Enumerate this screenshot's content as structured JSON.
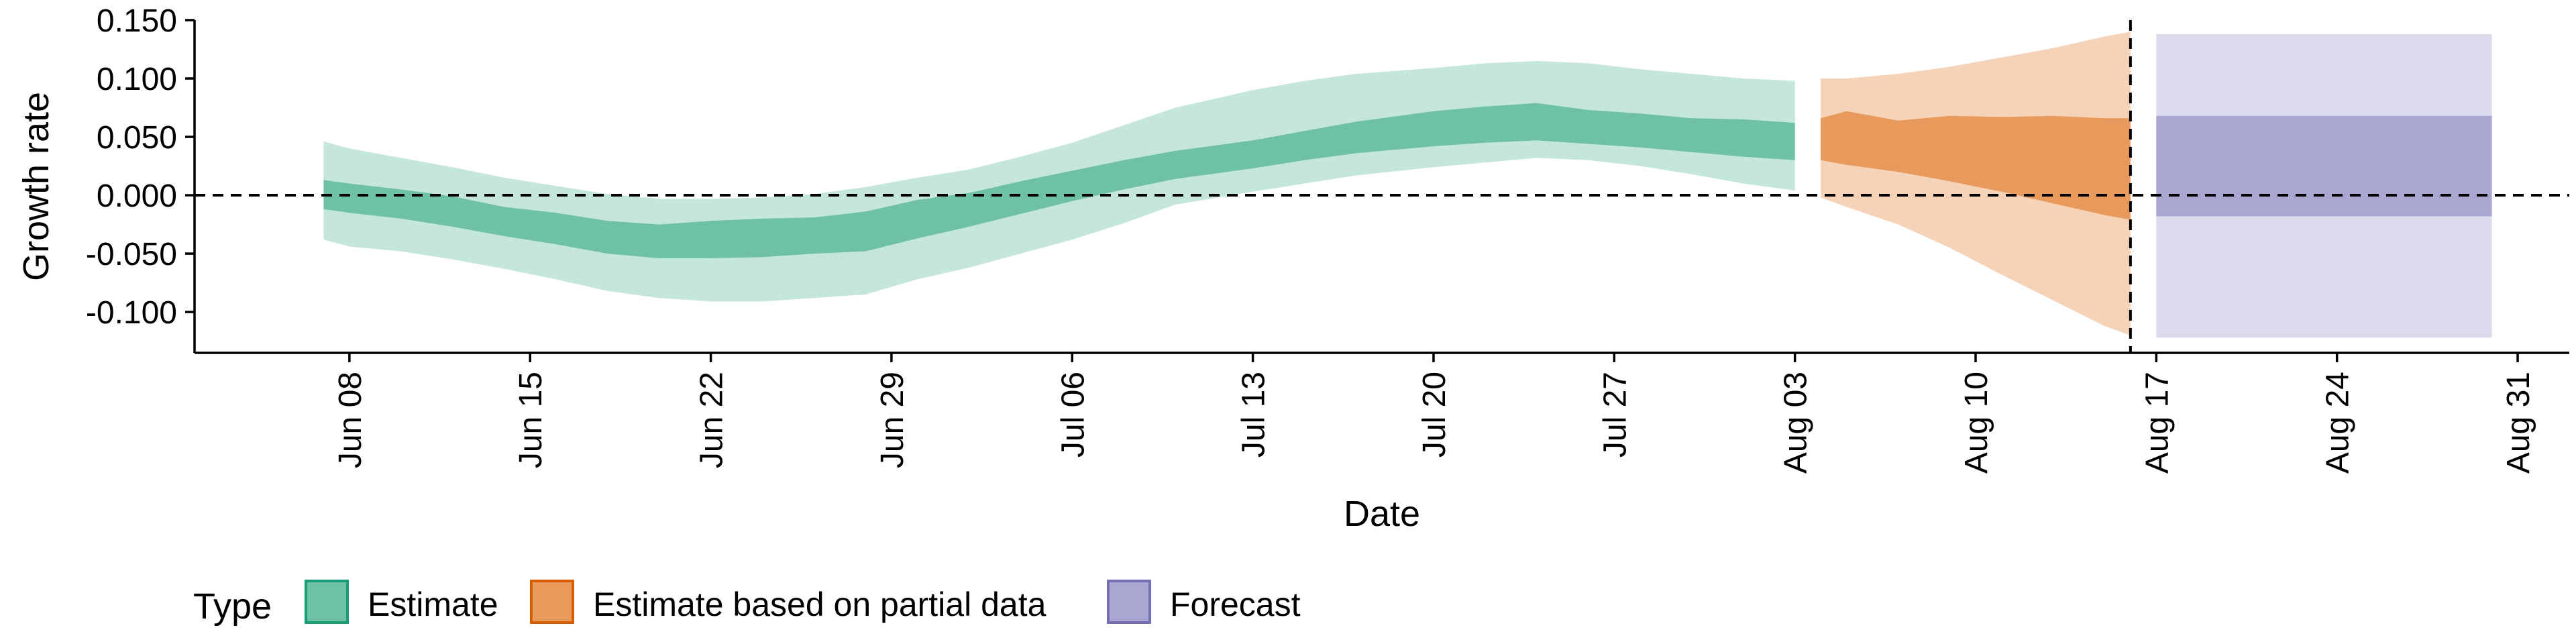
{
  "chart_data": {
    "type": "area",
    "title": "",
    "xlabel": "Date",
    "ylabel": "Growth rate",
    "ylim": [
      -0.135,
      0.15
    ],
    "y_ticks": [
      {
        "value": 0.15,
        "label": "0.150"
      },
      {
        "value": 0.1,
        "label": "0.100"
      },
      {
        "value": 0.05,
        "label": "0.050"
      },
      {
        "value": 0.0,
        "label": "0.000"
      },
      {
        "value": -0.05,
        "label": "-0.050"
      },
      {
        "value": -0.1,
        "label": "-0.100"
      }
    ],
    "x_ticks": [
      {
        "date": "2020-06-08",
        "label": "Jun 08"
      },
      {
        "date": "2020-06-15",
        "label": "Jun 15"
      },
      {
        "date": "2020-06-22",
        "label": "Jun 22"
      },
      {
        "date": "2020-06-29",
        "label": "Jun 29"
      },
      {
        "date": "2020-07-06",
        "label": "Jul 06"
      },
      {
        "date": "2020-07-13",
        "label": "Jul 13"
      },
      {
        "date": "2020-07-20",
        "label": "Jul 20"
      },
      {
        "date": "2020-07-27",
        "label": "Jul 27"
      },
      {
        "date": "2020-08-03",
        "label": "Aug 03"
      },
      {
        "date": "2020-08-10",
        "label": "Aug 10"
      },
      {
        "date": "2020-08-17",
        "label": "Aug 17"
      },
      {
        "date": "2020-08-24",
        "label": "Aug 24"
      },
      {
        "date": "2020-08-31",
        "label": "Aug 31"
      }
    ],
    "xlim": [
      "2020-06-02",
      "2020-09-02"
    ],
    "reference_lines": {
      "horizontal_y": 0.0,
      "vertical_date": "2020-08-16",
      "style": "dashed"
    },
    "legend": {
      "title": "Type",
      "position": "bottom-left",
      "items": [
        {
          "name": "Estimate",
          "fill": "#6fc1a5",
          "border": "#1b9e77"
        },
        {
          "name": "Estimate based on partial data",
          "fill": "#e89a5d",
          "border": "#d95f02"
        },
        {
          "name": "Forecast",
          "fill": "#a9a6d2",
          "border": "#7570b3"
        }
      ]
    },
    "series": [
      {
        "name": "Estimate",
        "inner_color": "#6fc1a5",
        "outer_color": "#c5e6da",
        "points": [
          {
            "date": "2020-06-07",
            "lower90": -0.038,
            "lower50": -0.012,
            "upper50": 0.013,
            "upper90": 0.046
          },
          {
            "date": "2020-06-08",
            "lower90": -0.044,
            "lower50": -0.015,
            "upper50": 0.01,
            "upper90": 0.04
          },
          {
            "date": "2020-06-10",
            "lower90": -0.048,
            "lower50": -0.02,
            "upper50": 0.005,
            "upper90": 0.032
          },
          {
            "date": "2020-06-12",
            "lower90": -0.055,
            "lower50": -0.027,
            "upper50": -0.001,
            "upper90": 0.024
          },
          {
            "date": "2020-06-14",
            "lower90": -0.063,
            "lower50": -0.035,
            "upper50": -0.01,
            "upper90": 0.015
          },
          {
            "date": "2020-06-16",
            "lower90": -0.072,
            "lower50": -0.042,
            "upper50": -0.015,
            "upper90": 0.008
          },
          {
            "date": "2020-06-18",
            "lower90": -0.082,
            "lower50": -0.05,
            "upper50": -0.022,
            "upper90": 0.001
          },
          {
            "date": "2020-06-20",
            "lower90": -0.088,
            "lower50": -0.054,
            "upper50": -0.025,
            "upper90": -0.003
          },
          {
            "date": "2020-06-22",
            "lower90": -0.091,
            "lower50": -0.054,
            "upper50": -0.022,
            "upper90": -0.003
          },
          {
            "date": "2020-06-24",
            "lower90": -0.091,
            "lower50": -0.053,
            "upper50": -0.02,
            "upper90": -0.002
          },
          {
            "date": "2020-06-26",
            "lower90": -0.088,
            "lower50": -0.05,
            "upper50": -0.019,
            "upper90": 0.001
          },
          {
            "date": "2020-06-28",
            "lower90": -0.085,
            "lower50": -0.048,
            "upper50": -0.014,
            "upper90": 0.007
          },
          {
            "date": "2020-06-30",
            "lower90": -0.072,
            "lower50": -0.037,
            "upper50": -0.004,
            "upper90": 0.015
          },
          {
            "date": "2020-07-02",
            "lower90": -0.062,
            "lower50": -0.027,
            "upper50": 0.002,
            "upper90": 0.022
          },
          {
            "date": "2020-07-04",
            "lower90": -0.05,
            "lower50": -0.016,
            "upper50": 0.012,
            "upper90": 0.033
          },
          {
            "date": "2020-07-06",
            "lower90": -0.038,
            "lower50": -0.005,
            "upper50": 0.021,
            "upper90": 0.045
          },
          {
            "date": "2020-07-08",
            "lower90": -0.024,
            "lower50": 0.005,
            "upper50": 0.03,
            "upper90": 0.06
          },
          {
            "date": "2020-07-10",
            "lower90": -0.008,
            "lower50": 0.014,
            "upper50": 0.038,
            "upper90": 0.075
          },
          {
            "date": "2020-07-13",
            "lower90": 0.003,
            "lower50": 0.023,
            "upper50": 0.047,
            "upper90": 0.09
          },
          {
            "date": "2020-07-15",
            "lower90": 0.01,
            "lower50": 0.03,
            "upper50": 0.055,
            "upper90": 0.098
          },
          {
            "date": "2020-07-17",
            "lower90": 0.017,
            "lower50": 0.036,
            "upper50": 0.063,
            "upper90": 0.104
          },
          {
            "date": "2020-07-20",
            "lower90": 0.024,
            "lower50": 0.042,
            "upper50": 0.072,
            "upper90": 0.109
          },
          {
            "date": "2020-07-22",
            "lower90": 0.028,
            "lower50": 0.045,
            "upper50": 0.076,
            "upper90": 0.113
          },
          {
            "date": "2020-07-24",
            "lower90": 0.032,
            "lower50": 0.047,
            "upper50": 0.079,
            "upper90": 0.115
          },
          {
            "date": "2020-07-26",
            "lower90": 0.03,
            "lower50": 0.044,
            "upper50": 0.073,
            "upper90": 0.113
          },
          {
            "date": "2020-07-28",
            "lower90": 0.025,
            "lower50": 0.041,
            "upper50": 0.07,
            "upper90": 0.108
          },
          {
            "date": "2020-07-30",
            "lower90": 0.018,
            "lower50": 0.037,
            "upper50": 0.066,
            "upper90": 0.104
          },
          {
            "date": "2020-08-01",
            "lower90": 0.01,
            "lower50": 0.033,
            "upper50": 0.065,
            "upper90": 0.1
          },
          {
            "date": "2020-08-03",
            "lower90": 0.004,
            "lower50": 0.03,
            "upper50": 0.062,
            "upper90": 0.098
          }
        ]
      },
      {
        "name": "Estimate based on partial data",
        "inner_color": "#e89a5d",
        "outer_color": "#f5d3b9",
        "points": [
          {
            "date": "2020-08-04",
            "lower90": -0.002,
            "lower50": 0.03,
            "upper50": 0.066,
            "upper90": 0.1
          },
          {
            "date": "2020-08-05",
            "lower90": -0.01,
            "lower50": 0.026,
            "upper50": 0.072,
            "upper90": 0.1
          },
          {
            "date": "2020-08-07",
            "lower90": -0.025,
            "lower50": 0.02,
            "upper50": 0.064,
            "upper90": 0.104
          },
          {
            "date": "2020-08-09",
            "lower90": -0.045,
            "lower50": 0.012,
            "upper50": 0.068,
            "upper90": 0.11
          },
          {
            "date": "2020-08-11",
            "lower90": -0.068,
            "lower50": 0.003,
            "upper50": 0.067,
            "upper90": 0.118
          },
          {
            "date": "2020-08-13",
            "lower90": -0.09,
            "lower50": -0.007,
            "upper50": 0.068,
            "upper90": 0.126
          },
          {
            "date": "2020-08-15",
            "lower90": -0.112,
            "lower50": -0.017,
            "upper50": 0.066,
            "upper90": 0.136
          },
          {
            "date": "2020-08-16",
            "lower90": -0.12,
            "lower50": -0.021,
            "upper50": 0.066,
            "upper90": 0.14
          }
        ]
      },
      {
        "name": "Forecast",
        "inner_color": "#a9a6d2",
        "outer_color": "#dcdaed",
        "points": [
          {
            "date": "2020-08-17",
            "lower90": -0.122,
            "lower50": -0.018,
            "upper50": 0.068,
            "upper90": 0.138
          },
          {
            "date": "2020-08-30",
            "lower90": -0.122,
            "lower50": -0.018,
            "upper50": 0.068,
            "upper90": 0.138
          }
        ]
      }
    ]
  }
}
